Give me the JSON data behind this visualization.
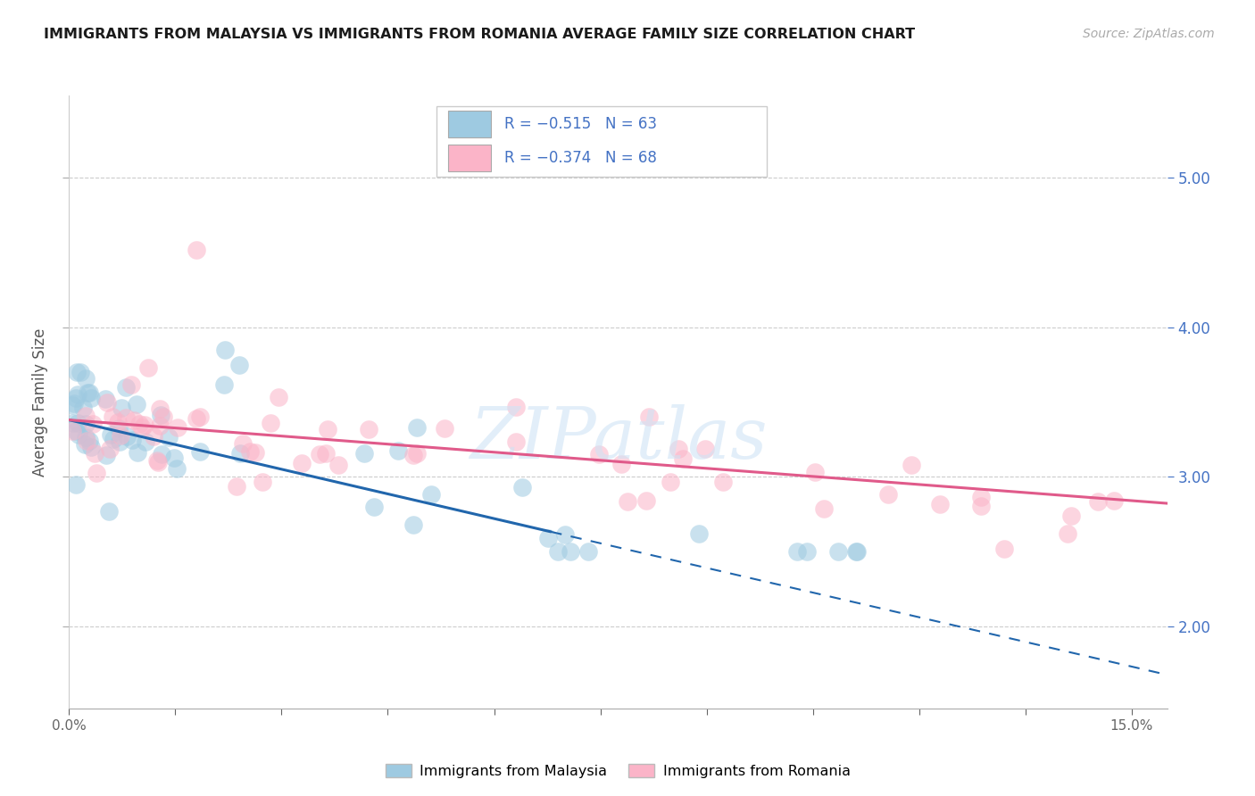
{
  "title": "IMMIGRANTS FROM MALAYSIA VS IMMIGRANTS FROM ROMANIA AVERAGE FAMILY SIZE CORRELATION CHART",
  "source": "Source: ZipAtlas.com",
  "ylabel": "Average Family Size",
  "right_ytick_labels": [
    "2.00",
    "3.00",
    "4.00",
    "5.00"
  ],
  "right_ytick_values": [
    2.0,
    3.0,
    4.0,
    5.0
  ],
  "ylim": [
    1.45,
    5.55
  ],
  "xlim": [
    0.0,
    0.155
  ],
  "watermark": "ZIPatlas",
  "malaysia_color": "#9ecae1",
  "romania_color": "#fbb4c8",
  "malaysia_line_color": "#2166ac",
  "romania_line_color": "#e05a8a",
  "legend_label_malaysia": "Immigrants from Malaysia",
  "legend_label_romania": "Immigrants from Romania",
  "legend_text_color": "#4472C4",
  "malaysia_reg_intercept": 3.38,
  "malaysia_reg_slope": -11.0,
  "malaysia_solid_end_x": 0.068,
  "romania_reg_intercept": 3.38,
  "romania_reg_slope": -3.6,
  "xtick_only_ends": true,
  "xtick_minor_count": 9,
  "grid_color": "#cccccc",
  "title_fontsize": 11.5,
  "source_fontsize": 10,
  "right_axis_color": "#4472C4",
  "scatter_size": 220,
  "scatter_alpha": 0.55
}
